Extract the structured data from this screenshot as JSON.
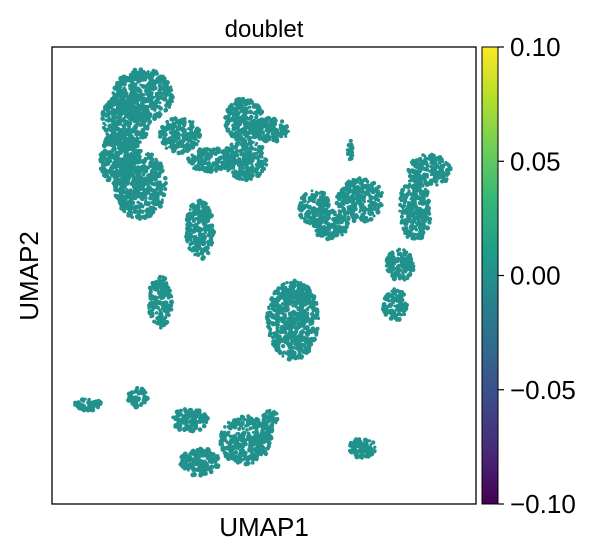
{
  "chart_data": {
    "type": "scatter",
    "title": "doublet",
    "xlabel": "UMAP1",
    "ylabel": "UMAP2",
    "point_color": "#21918c",
    "point_value": 0.0,
    "grid": false,
    "x_ticks": [],
    "y_ticks": [],
    "colorbar": {
      "colormap": "viridis",
      "range": [
        -0.1,
        0.1
      ],
      "ticks": [
        0.1,
        0.05,
        0.0,
        -0.05,
        -0.1
      ],
      "tick_labels": [
        "0.10",
        "0.05",
        "0.00",
        "−0.05",
        "−0.10"
      ],
      "colors": [
        "#440154",
        "#482878",
        "#3e4989",
        "#31688e",
        "#26828e",
        "#1f9e89",
        "#35b779",
        "#6ece58",
        "#b5de2b",
        "#fde725"
      ]
    }
  }
}
